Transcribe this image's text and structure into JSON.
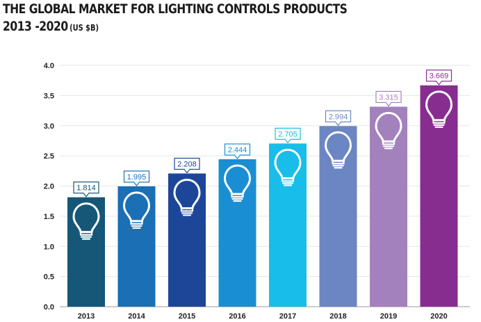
{
  "title": "THE GLOBAL MARKET FOR LIGHTING CONTROLS PRODUCTS",
  "subtitle_years": "2013 -2020",
  "subtitle_unit": "(US $B)",
  "chart_data": {
    "type": "bar",
    "title": "THE GLOBAL MARKET FOR LIGHTING CONTROLS PRODUCTS 2013 -2020 (US $B)",
    "categories": [
      "2013",
      "2014",
      "2015",
      "2016",
      "2017",
      "2018",
      "2019",
      "2020"
    ],
    "values": [
      1.814,
      1.995,
      2.208,
      2.444,
      2.705,
      2.994,
      3.315,
      3.669
    ],
    "value_labels": [
      "1.814",
      "1.995",
      "2.208",
      "2.444",
      "2.705",
      "2.994",
      "3.315",
      "3.669"
    ],
    "ylim": [
      0,
      4.0
    ],
    "yticks": [
      "0.0",
      "0.5",
      "1.0",
      "1.5",
      "2.0",
      "2.5",
      "3.0",
      "3.5",
      "4.0"
    ],
    "grid": true,
    "bar_colors": [
      "#165778",
      "#1a6fb5",
      "#1d4698",
      "#1a8ed3",
      "#19bde9",
      "#6b86c2",
      "#a381bd",
      "#882d90"
    ],
    "bar_icon": "lightbulb-icon"
  }
}
